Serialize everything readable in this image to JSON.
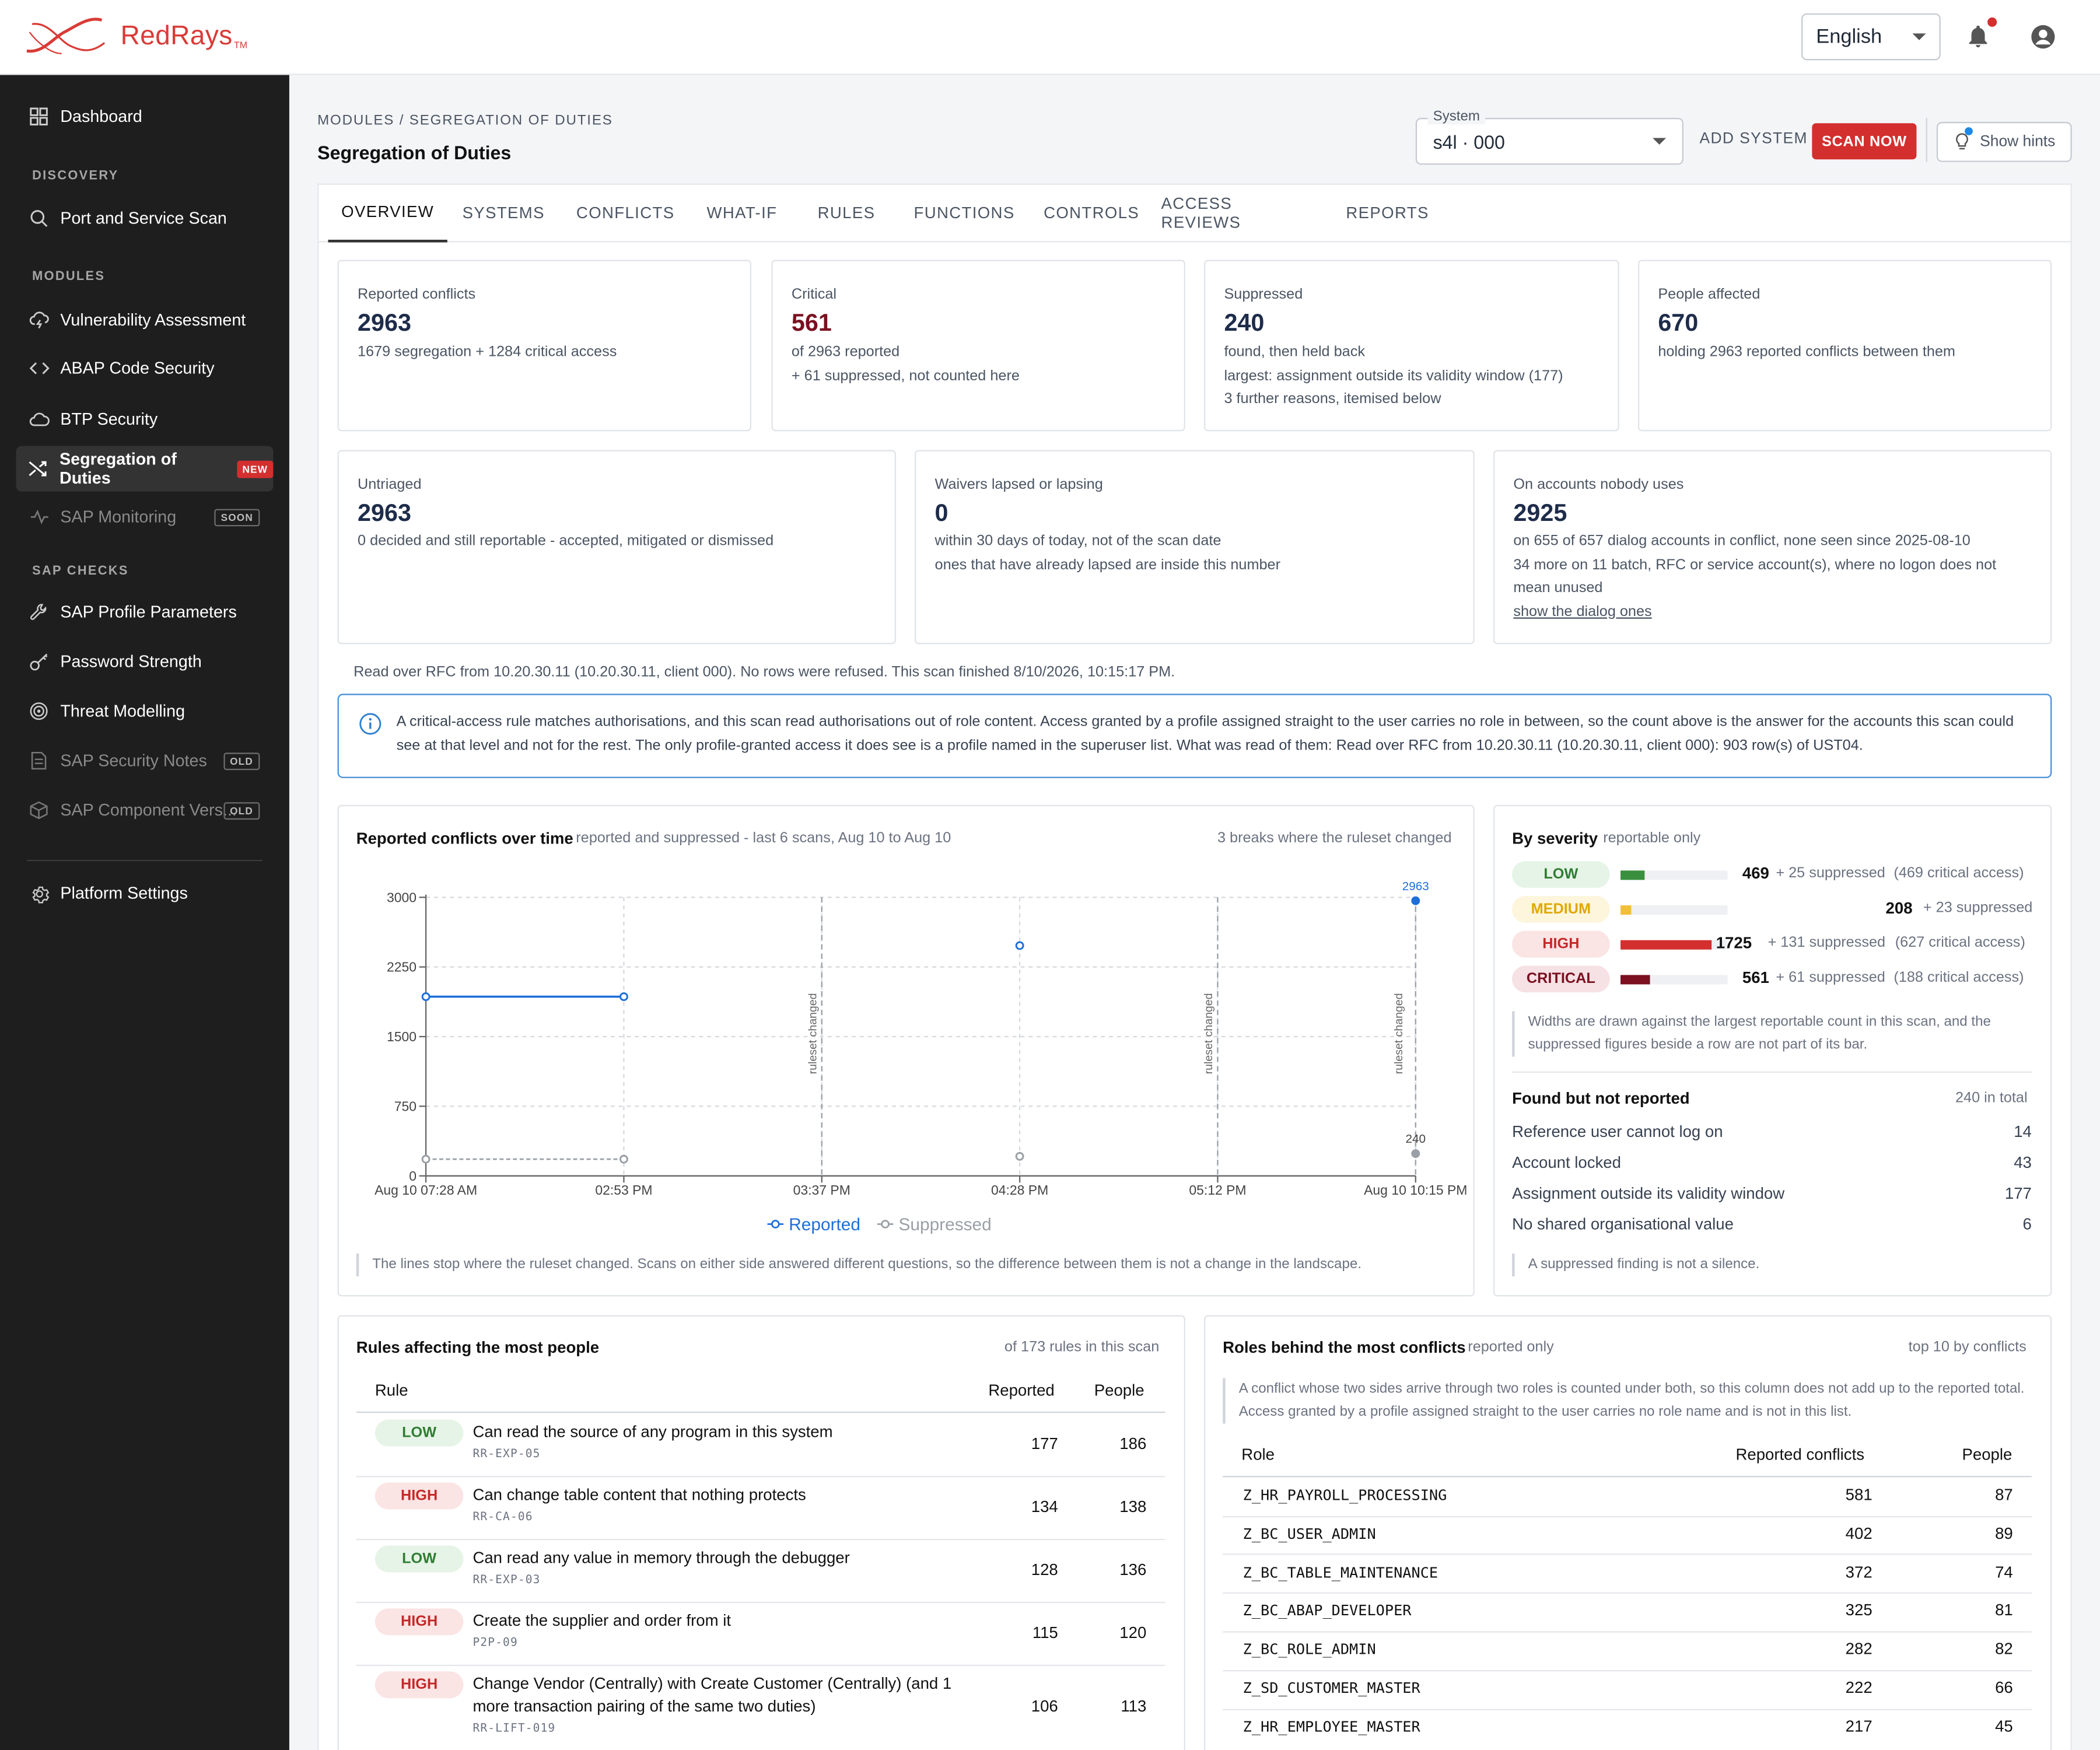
{
  "app": {
    "brand": "RedRays",
    "trademark": "TM",
    "language": "English"
  },
  "sidebar": {
    "dashboard": "Dashboard",
    "sec_discovery": "DISCOVERY",
    "port_scan": "Port and Service Scan",
    "sec_modules": "MODULES",
    "vuln": "Vulnerability Assessment",
    "abap": "ABAP Code Security",
    "btp": "BTP Security",
    "sod": "Segregation of Duties",
    "sod_badge": "NEW",
    "monitoring": "SAP Monitoring",
    "monitoring_badge": "SOON",
    "sec_checks": "SAP CHECKS",
    "profile_params": "SAP Profile Parameters",
    "password": "Password Strength",
    "threat": "Threat Modelling",
    "notes": "SAP Security Notes",
    "notes_badge": "OLD",
    "component": "SAP Component Vers...",
    "component_badge": "OLD",
    "platform": "Platform Settings"
  },
  "header": {
    "breadcrumb": "MODULES / SEGREGATION OF DUTIES",
    "title": "Segregation of Duties",
    "system_label": "System",
    "system_value": "s4l · 000",
    "add_system": "ADD SYSTEM",
    "scan_now": "SCAN NOW",
    "show_hints": "Show hints"
  },
  "tabs": [
    "OVERVIEW",
    "SYSTEMS",
    "CONFLICTS",
    "WHAT-IF",
    "RULES",
    "FUNCTIONS",
    "CONTROLS",
    "ACCESS REVIEWS",
    "REPORTS"
  ],
  "cards": {
    "reported": {
      "label": "Reported conflicts",
      "value": "2963",
      "lines": [
        "1679 segregation + 1284 critical access"
      ]
    },
    "critical": {
      "label": "Critical",
      "value": "561",
      "lines": [
        "of 2963 reported",
        "+ 61 suppressed, not counted here"
      ]
    },
    "suppressed": {
      "label": "Suppressed",
      "value": "240",
      "lines": [
        "found, then held back",
        "largest: assignment outside its validity window (177)",
        "3 further reasons, itemised below"
      ]
    },
    "people": {
      "label": "People affected",
      "value": "670",
      "lines": [
        "holding 2963 reported conflicts between them"
      ]
    },
    "untriaged": {
      "label": "Untriaged",
      "value": "2963",
      "lines": [
        "0 decided and still reportable - accepted, mitigated or dismissed"
      ]
    },
    "waivers": {
      "label": "Waivers lapsed or lapsing",
      "value": "0",
      "lines": [
        "within 30 days of today, not of the scan date",
        "ones that have already lapsed are inside this number"
      ]
    },
    "unused": {
      "label": "On accounts nobody uses",
      "value": "2925",
      "lines": [
        "on 655 of 657 dialog accounts in conflict, none seen since 2025-08-10",
        "34 more on 11 batch, RFC or service account(s), where no logon does not",
        "mean unused"
      ],
      "link": "show the dialog ones"
    }
  },
  "read_line": "Read over RFC from 10.20.30.11 (10.20.30.11, client 000). No rows were refused. This scan finished 8/10/2026, 10:15:17 PM.",
  "callout": "A critical-access rule matches authorisations, and this scan read authorisations out of role content. Access granted by a profile assigned straight to the user carries no role in between, so the count above is the answer for the accounts this scan could see at that level and not for the rest. The only profile-granted access it does see is a profile named in the superuser list. What was read of them: Read over RFC from 10.20.30.11 (10.20.30.11, client 000): 903 row(s) of UST04.",
  "trend": {
    "title": "Reported conflicts over time",
    "subtitle": "reported and suppressed - last 6 scans, Aug 10 to Aug 10",
    "right_note": "3 breaks where the ruleset changed",
    "note": "The lines stop where the ruleset changed. Scans on either side answered different questions, so the difference between them is not a change in the landscape."
  },
  "chart_data": {
    "type": "line",
    "title": "Reported conflicts over time",
    "x": [
      "Aug 10 07:28 AM",
      "02:53 PM",
      "03:37 PM",
      "04:28 PM",
      "05:12 PM",
      "Aug 10 10:15 PM"
    ],
    "x_ticks": [
      "Aug 10 07:28 AM",
      "02:53 PM",
      "03:37 PM",
      "04:28 PM",
      "05:12 PM",
      "Aug 10 10:15 PM"
    ],
    "y_ticks": [
      "0",
      "750",
      "1500",
      "2250",
      "3000"
    ],
    "ylim": [
      0,
      3000
    ],
    "grid": true,
    "legend": "bottom",
    "series": [
      {
        "name": "Reported",
        "color": "#1e6fd9",
        "values": [
          1930,
          1930,
          null,
          2480,
          null,
          2963
        ],
        "labels": [
          null,
          null,
          null,
          null,
          null,
          "2963"
        ]
      },
      {
        "name": "Suppressed",
        "color": "#9aa0a6",
        "values": [
          180,
          180,
          null,
          210,
          null,
          240
        ],
        "labels": [
          null,
          null,
          null,
          null,
          null,
          "240"
        ]
      }
    ],
    "segments": [
      [
        0,
        1
      ],
      [
        3,
        3
      ],
      [
        5,
        5
      ]
    ],
    "breaks": [
      {
        "between": [
          1,
          3
        ],
        "at_index": 2,
        "label": "ruleset changed"
      },
      {
        "between": [
          3,
          5
        ],
        "at_index": 4,
        "label": "ruleset changed"
      },
      {
        "between": [
          4,
          5
        ],
        "at_index": 5,
        "label": "ruleset changed"
      }
    ]
  },
  "severity": {
    "title": "By severity",
    "subtitle": "reportable only",
    "rows": [
      {
        "label": "LOW",
        "value": "469",
        "fraction": 0.272,
        "suppressed": "+ 25 suppressed",
        "critical": "(469 critical access)",
        "bar": "#3a8f3e",
        "pill_bg": "#e6f4e7",
        "pill_fg": "#2e7d32"
      },
      {
        "label": "MEDIUM",
        "value": "208",
        "fraction": 0.121,
        "suppressed": "+ 23 suppressed",
        "critical": "",
        "bar": "#f2c037",
        "pill_bg": "#fdf5dc",
        "pill_fg": "#e0a800"
      },
      {
        "label": "HIGH",
        "value": "1725",
        "fraction": 1.0,
        "suppressed": "+ 131 suppressed",
        "critical": "(627 critical access)",
        "bar": "#d32f2f",
        "pill_bg": "#fbe4e4",
        "pill_fg": "#c62828"
      },
      {
        "label": "CRITICAL",
        "value": "561",
        "fraction": 0.325,
        "suppressed": "+ 61 suppressed",
        "critical": "(188 critical access)",
        "bar": "#7a1020",
        "pill_bg": "#f6e1e4",
        "pill_fg": "#7a1020"
      }
    ],
    "note": "Widths are drawn against the largest reportable count in this scan, and the suppressed figures beside a row are not part of its bar.",
    "fnr_title": "Found but not reported",
    "fnr_total": "240 in total",
    "fnr": [
      {
        "label": "Reference user cannot log on",
        "value": "14"
      },
      {
        "label": "Account locked",
        "value": "43"
      },
      {
        "label": "Assignment outside its validity window",
        "value": "177"
      },
      {
        "label": "No shared organisational value",
        "value": "6"
      }
    ],
    "fnr_note": "A suppressed finding is not a silence."
  },
  "rules": {
    "title": "Rules affecting the most people",
    "right_note": "of 173 rules in this scan",
    "col_rule": "Rule",
    "col_reported": "Reported",
    "col_people": "People",
    "rows": [
      {
        "sev": "LOW",
        "text": "Can read the source of any program in this system",
        "id": "RR-EXP-05",
        "reported": "177",
        "people": "186"
      },
      {
        "sev": "HIGH",
        "text": "Can change table content that nothing protects",
        "id": "RR-CA-06",
        "reported": "134",
        "people": "138"
      },
      {
        "sev": "LOW",
        "text": "Can read any value in memory through the debugger",
        "id": "RR-EXP-03",
        "reported": "128",
        "people": "136"
      },
      {
        "sev": "HIGH",
        "text": "Create the supplier and order from it",
        "id": "P2P-09",
        "reported": "115",
        "people": "120"
      },
      {
        "sev": "HIGH",
        "text": "Change Vendor (Centrally) with Create Customer (Centrally) (and 1 more transaction pairing of the same two duties)",
        "id": "RR-LIFT-019",
        "reported": "106",
        "people": "113"
      }
    ]
  },
  "roles": {
    "title": "Roles behind the most conflicts",
    "subtitle": "reported only",
    "right_note": "top 10 by conflicts",
    "note": "A conflict whose two sides arrive through two roles is counted under both, so this column does not add up to the reported total. Access granted by a profile assigned straight to the user carries no role name and is not in this list.",
    "col_role": "Role",
    "col_reported": "Reported conflicts",
    "col_people": "People",
    "rows": [
      {
        "role": "Z_HR_PAYROLL_PROCESSING",
        "reported": "581",
        "people": "87"
      },
      {
        "role": "Z_BC_USER_ADMIN",
        "reported": "402",
        "people": "89"
      },
      {
        "role": "Z_BC_TABLE_MAINTENANCE",
        "reported": "372",
        "people": "74"
      },
      {
        "role": "Z_BC_ABAP_DEVELOPER",
        "reported": "325",
        "people": "81"
      },
      {
        "role": "Z_BC_ROLE_ADMIN",
        "reported": "282",
        "people": "82"
      },
      {
        "role": "Z_SD_CUSTOMER_MASTER",
        "reported": "222",
        "people": "66"
      },
      {
        "role": "Z_HR_EMPLOYEE_MASTER",
        "reported": "217",
        "people": "45"
      }
    ]
  }
}
